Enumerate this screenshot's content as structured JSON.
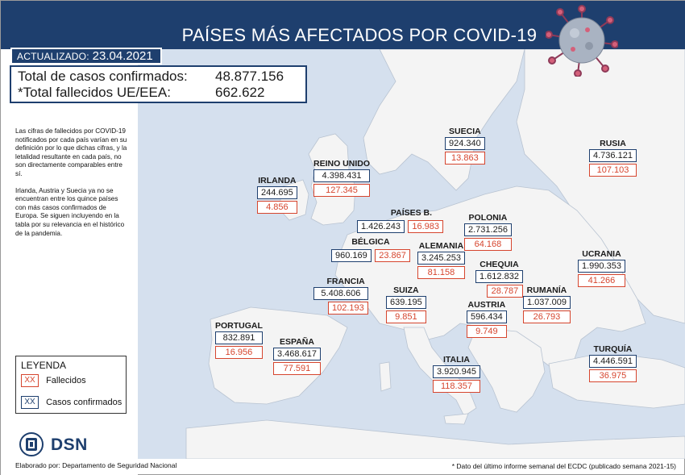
{
  "header": {
    "title": "PAÍSES MÁS AFECTADOS POR COVID-19"
  },
  "updated": {
    "label": "ACTUALIZADO:",
    "date": "23.04.2021"
  },
  "totals": {
    "cases_label": "Total de casos confirmados:",
    "cases_value": "48.877.156",
    "deaths_label": "*Total fallecidos UE/EEA:",
    "deaths_value": "662.622"
  },
  "note": {
    "p1": "Las cifras de fallecidos por COVID-19 notificados por cada país varían en su definición por lo que dichas cifras, y la letalidad resultante en cada país, no son directamente comparables entre sí.",
    "p2": "Irlanda, Austria y Suecia ya no se encuentran entre los quince países con más casos confirmados de Europa. Se siguen incluyendo en la tabla por su relevancia en el histórico de la pandemia."
  },
  "legend": {
    "title": "LEYENDA",
    "deaths_marker": "XX",
    "deaths_label": "Fallecidos",
    "cases_marker": "XX",
    "cases_label": "Casos confirmados"
  },
  "logo": {
    "text": "DSN"
  },
  "credit": "Elaborado por: Departamento de Seguridad Nacional",
  "footnote": "* Dato del último informe semanal del ECDC (publicado semana 2021-15)",
  "countries": {
    "suecia": {
      "name": "SUECIA",
      "cases": "924.340",
      "deaths": "13.863"
    },
    "rusia": {
      "name": "RUSIA",
      "cases": "4.736.121",
      "deaths": "107.103"
    },
    "reino_unido": {
      "name": "REINO UNIDO",
      "cases": "4.398.431",
      "deaths": "127.345"
    },
    "irlanda": {
      "name": "IRLANDA",
      "cases": "244.695",
      "deaths": "4.856"
    },
    "paises_bajos": {
      "name": "PAÍSES B.",
      "cases": "1.426.243",
      "deaths": "16.983"
    },
    "polonia": {
      "name": "POLONIA",
      "cases": "2.731.256",
      "deaths": "64.168"
    },
    "belgica": {
      "name": "BÉLGICA",
      "cases": "960.169",
      "deaths": "23.867"
    },
    "alemania": {
      "name": "ALEMANIA",
      "cases": "3.245.253",
      "deaths": "81.158"
    },
    "ucrania": {
      "name": "UCRANIA",
      "cases": "1.990.353",
      "deaths": "41.266"
    },
    "chequia": {
      "name": "CHEQUIA",
      "cases": "1.612.832",
      "deaths": "28.787"
    },
    "francia": {
      "name": "FRANCIA",
      "cases": "5.408.606",
      "deaths": "102.193"
    },
    "suiza": {
      "name": "SUIZA",
      "cases": "639.195",
      "deaths": "9.851"
    },
    "rumania": {
      "name": "RUMANÍA",
      "cases": "1.037.009",
      "deaths": "26.793"
    },
    "austria": {
      "name": "AUSTRIA",
      "cases": "596.434",
      "deaths": "9.749"
    },
    "portugal": {
      "name": "PORTUGAL",
      "cases": "832.891",
      "deaths": "16.956"
    },
    "espana": {
      "name": "ESPAÑA",
      "cases": "3.468.617",
      "deaths": "77.591"
    },
    "turquia": {
      "name": "TURQUÍA",
      "cases": "4.446.591",
      "deaths": "36.975"
    },
    "italia": {
      "name": "ITALIA",
      "cases": "3.920.945",
      "deaths": "118.357"
    }
  },
  "colors": {
    "navy": "#1e3f6e",
    "red": "#d6452e",
    "land": "#f4f4f4",
    "sea": "#d5e0ee"
  }
}
